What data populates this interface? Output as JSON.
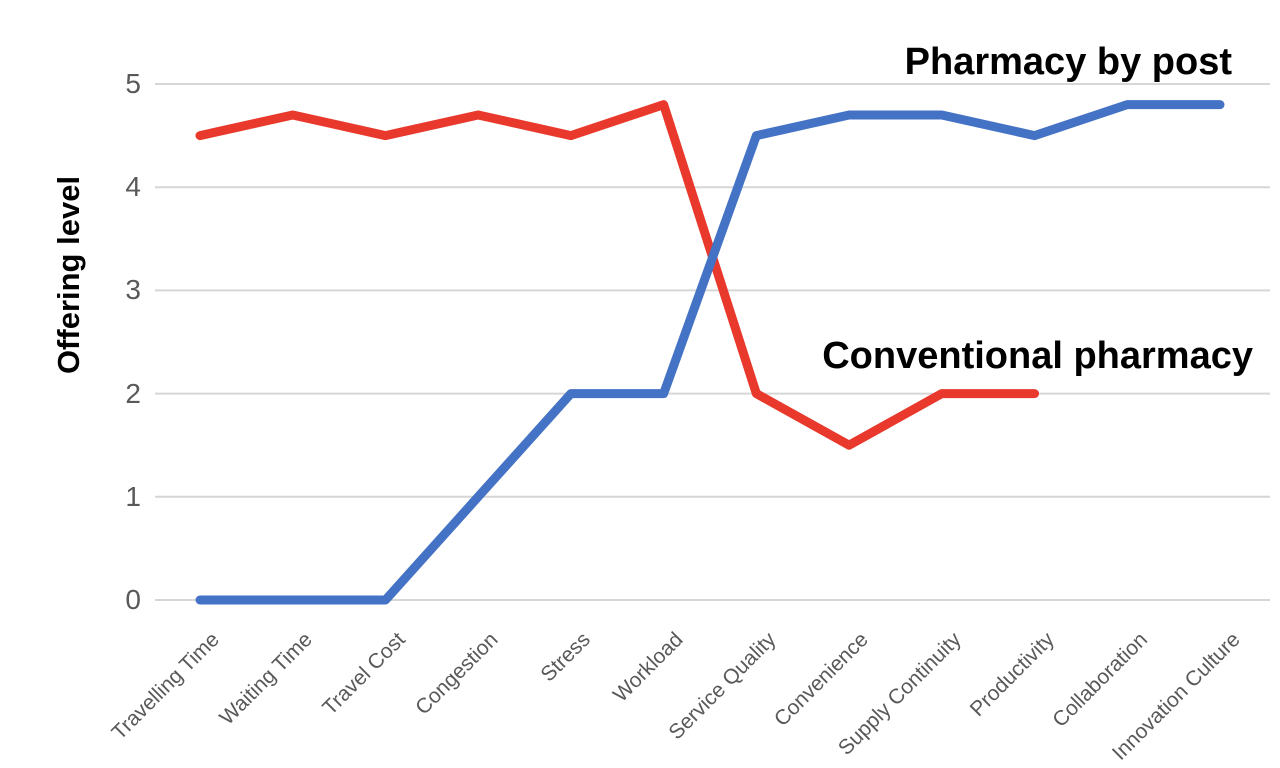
{
  "chart_data": {
    "type": "line",
    "title": "",
    "xlabel": "",
    "ylabel": "Offering level",
    "ylim": [
      0,
      5
    ],
    "y_ticks": [
      0,
      1,
      2,
      3,
      4,
      5
    ],
    "grid": "horizontal",
    "legend": "inline text annotations near lines (no legend box)",
    "categories": [
      "Travelling Time",
      "Waiting Time",
      "Travel Cost",
      "Congestion",
      "Stress",
      "Workload",
      "Service Quality",
      "Convenience",
      "Supply Continuity",
      "Productivity",
      "Collaboration",
      "Innovation Culture"
    ],
    "series": [
      {
        "name": "Pharmacy by post",
        "color": "#4472C4",
        "values": [
          0,
          0,
          0,
          1,
          2,
          2,
          4.5,
          4.7,
          4.7,
          4.5,
          4.8,
          4.8
        ]
      },
      {
        "name": "Conventional pharmacy",
        "color": "#E8392C",
        "values": [
          4.5,
          4.7,
          4.5,
          4.7,
          4.5,
          4.8,
          2,
          1.5,
          2,
          2,
          null,
          null
        ]
      }
    ],
    "colors": {
      "gridline": "#D6D6D6",
      "tick_text": "#595959",
      "axis_title_text": "#000000",
      "annotation_text": "#000000"
    }
  }
}
